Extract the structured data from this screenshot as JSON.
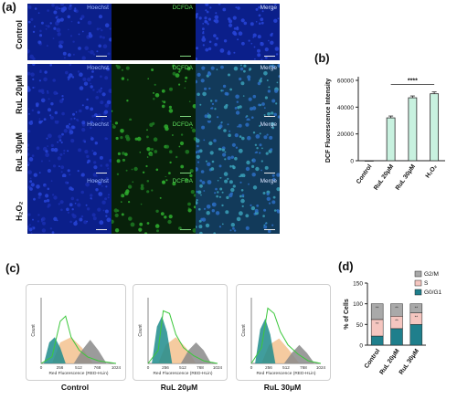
{
  "panel_letters": {
    "a": "(a)",
    "b": "(b)",
    "c": "(c)",
    "d": "(d)"
  },
  "microscopy": {
    "row_labels": [
      "Control",
      "RuL 20μM",
      "RuL 30μM",
      "H₂O₂"
    ],
    "channel_tags": [
      "Hoechst",
      "DCFDA",
      "Merge"
    ]
  },
  "chart_data": [
    {
      "type": "bar",
      "panel": "(b)",
      "categories": [
        "Control",
        "RuL 20μM",
        "RuL 30μM",
        "H₂O₂"
      ],
      "values": [
        0,
        32000,
        47000,
        50000
      ],
      "ylabel": "DCF Fluorescence Intensity",
      "yticks": [
        "0",
        "20000",
        "40000",
        "60000"
      ],
      "ylim": [
        0,
        60000
      ],
      "significance": "****",
      "bar_color": "#c8f1df",
      "bar_edge": "#2a2a2a"
    },
    {
      "type": "histogram",
      "panel": "(c)",
      "plots": [
        {
          "title": "Control"
        },
        {
          "title": "RuL 20μM"
        },
        {
          "title": "RuL 30μM"
        }
      ],
      "xlabel": "Red Fluorescence (RED-HLin)",
      "ylabel": "Count",
      "xticks": [
        "0",
        "256",
        "512",
        "768",
        "1024"
      ],
      "series_colors": {
        "outline": "#3cc83c",
        "g0g1": "#1f8c8c",
        "s": "#f3c28f",
        "g2m": "#8a8a8a"
      }
    },
    {
      "type": "stacked-bar",
      "panel": "(d)",
      "categories": [
        "Control",
        "RuL 20μM",
        "RuL 30μM"
      ],
      "series": [
        {
          "name": "G0/G1",
          "values": [
            22,
            40,
            50
          ],
          "color": "#1f7f8c"
        },
        {
          "name": "S",
          "values": [
            40,
            30,
            28
          ],
          "color": "#f5c6c0"
        },
        {
          "name": "G2/M",
          "values": [
            38,
            30,
            22
          ],
          "color": "#a9a9a9"
        }
      ],
      "ylabel": "% of Cells",
      "yticks": [
        "0",
        "50",
        "100",
        "150"
      ],
      "ylim": [
        0,
        150
      ],
      "stars": [
        "**",
        "**",
        "**",
        "**",
        "**",
        "**"
      ]
    }
  ]
}
